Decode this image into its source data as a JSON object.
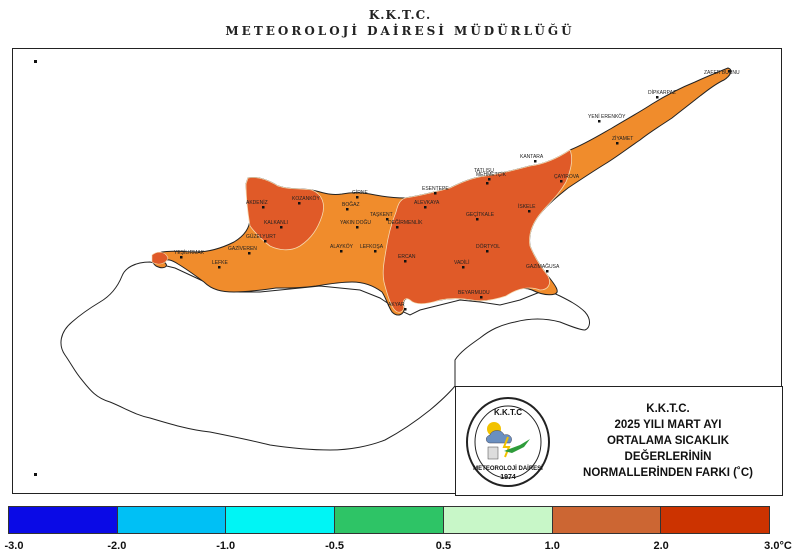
{
  "header": {
    "line1": "K.K.T.C.",
    "line2": "METEOROLOJİ DAİRESİ MÜDÜRLÜĞÜ"
  },
  "info": {
    "line1": "K.K.T.C.",
    "line2": "2025 YILI MART AYI",
    "line3": "ORTALAMA SICAKLIK",
    "line4": "DEĞERLERİNİN",
    "line5": "NORMALLERİNDEN FARKI (˚C)"
  },
  "logo": {
    "top_text": "K.K.T.C",
    "ring_text": "METEOROLOJİ DAİRESİ",
    "year": "1974"
  },
  "legend": {
    "ticks": [
      "-3.0",
      "-2.0",
      "-1.0",
      "-0.5",
      "0.5",
      "1.0",
      "2.0",
      "3.0°C"
    ],
    "colors": [
      "#0a0ae6",
      "#00c0f5",
      "#00f5f5",
      "#2ec466",
      "#c8f7c8",
      "#cc6633",
      "#cc3300"
    ]
  },
  "map_colors": {
    "orange": "#f08c2c",
    "red": "#e05a28",
    "outline": "#222222"
  },
  "towns": [
    {
      "name": "ZAFER BURNU"
    },
    {
      "name": "DİPKARPAZ"
    },
    {
      "name": "YENİ ERENKÖY"
    },
    {
      "name": "ZİYAMET"
    },
    {
      "name": "KANTARA"
    },
    {
      "name": "ÇAYIROVA"
    },
    {
      "name": "MEHMETÇİK"
    },
    {
      "name": "İSKELE"
    },
    {
      "name": "ESENTEPE"
    },
    {
      "name": "TATLISU"
    },
    {
      "name": "GİRNE"
    },
    {
      "name": "KOZANKÖY"
    },
    {
      "name": "AKDENİZ"
    },
    {
      "name": "BOĞAZ"
    },
    {
      "name": "ALEVKAYA"
    },
    {
      "name": "TAŞKENT"
    },
    {
      "name": "GEÇİTKALE"
    },
    {
      "name": "KALKANLI"
    },
    {
      "name": "YAKIN DOĞU"
    },
    {
      "name": "DEĞİRMENLİK"
    },
    {
      "name": "GÜZELYURT"
    },
    {
      "name": "ALAYKÖY"
    },
    {
      "name": "LEFKOŞA"
    },
    {
      "name": "DÖRTYOL"
    },
    {
      "name": "YEŞİLIRMAK"
    },
    {
      "name": "GAZİVEREN"
    },
    {
      "name": "LEFKE"
    },
    {
      "name": "ERCAN"
    },
    {
      "name": "VADİLİ"
    },
    {
      "name": "GAZİMAĞUSA"
    },
    {
      "name": "BEYARMUDU"
    },
    {
      "name": "AKYAR"
    }
  ]
}
